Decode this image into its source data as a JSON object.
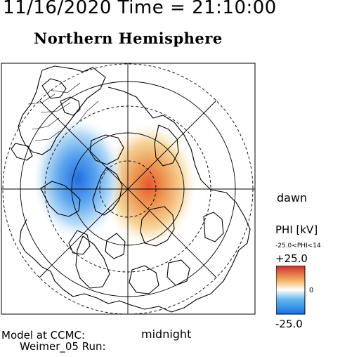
{
  "header": {
    "datetime": "11/16/2020 Time = 21:10:00",
    "hemisphere": "Northern Hemisphere"
  },
  "map": {
    "projection": "polar",
    "labels": {
      "dawn": "dawn",
      "midnight": "midnight"
    },
    "potential_cells": [
      {
        "name": "positive cell",
        "location": "dawn side",
        "color": "#e04020"
      },
      {
        "name": "negative cell",
        "location": "dusk side",
        "color": "#1a6fe0"
      }
    ]
  },
  "footer": {
    "model_line1": "Model at CCMC:",
    "model_line2": "Weimer_05 Run:"
  },
  "colorbar": {
    "title": "PHI [kV]",
    "range_label": "-25.0<PHI<14",
    "max_label": "+25.0",
    "zero_label": "0",
    "min_label": "-25.0",
    "colors": [
      "#d22b2b",
      "#f0b060",
      "#ffffff",
      "#60b8f0",
      "#1a6fe0"
    ]
  }
}
